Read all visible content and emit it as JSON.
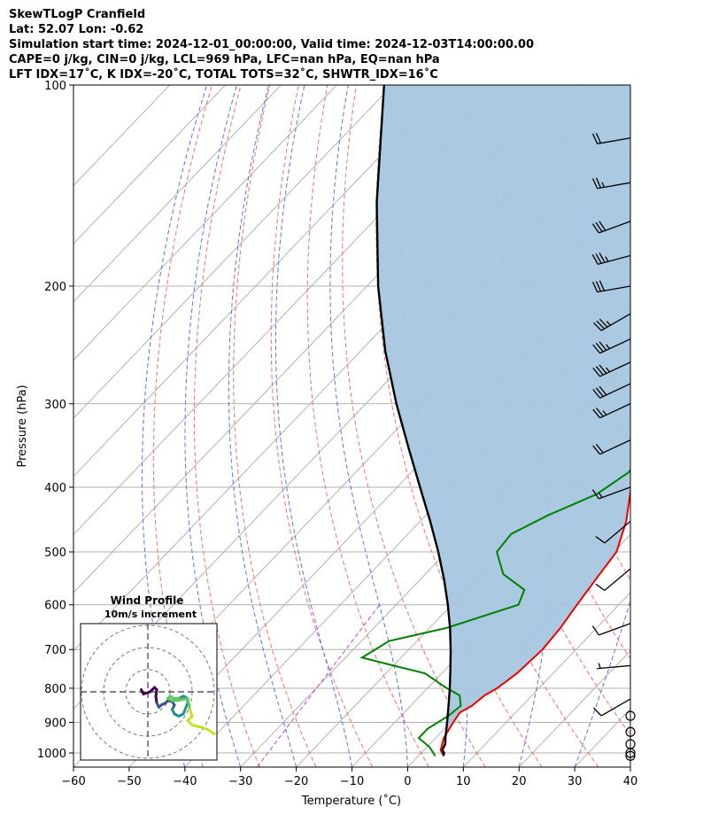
{
  "header": {
    "line1": "SkewTLogP Cranfield",
    "line2": "Lat: 52.07   Lon: -0.62",
    "line3": "Simulation start time: 2024-12-01_00:00:00, Valid time: 2024-12-03T14:00:00.00",
    "line4": "CAPE=0 j/kg, CIN=0 j/kg, LCL=969 hPa, LFC=nan hPa, EQ=nan hPa",
    "line5": "LFT IDX=17˚C, K IDX=-20˚C, TOTAL TOTS=32˚C, SHWTR_IDX=16˚C"
  },
  "chart_data": {
    "type": "skewt",
    "xlabel": "Temperature (˚C)",
    "ylabel": "Pressure (hPa)",
    "xlim": [
      -60,
      40
    ],
    "ylim": [
      1050,
      100
    ],
    "x_ticks": [
      -60,
      -50,
      -40,
      -30,
      -20,
      -10,
      0,
      10,
      20,
      30,
      40
    ],
    "y_ticks": [
      100,
      200,
      300,
      400,
      500,
      600,
      700,
      800,
      900,
      1000
    ],
    "temperature": [
      [
        1010,
        4.5
      ],
      [
        990,
        3.0
      ],
      [
        950,
        1.5
      ],
      [
        900,
        0.5
      ],
      [
        870,
        0.0
      ],
      [
        850,
        1.0
      ],
      [
        820,
        1.5
      ],
      [
        800,
        2.5
      ],
      [
        760,
        3.5
      ],
      [
        700,
        4.0
      ],
      [
        650,
        3.5
      ],
      [
        600,
        2.5
      ],
      [
        550,
        1.5
      ],
      [
        500,
        0.5
      ],
      [
        450,
        -3.0
      ],
      [
        400,
        -8.0
      ],
      [
        350,
        -11.0
      ],
      [
        300,
        -15.0
      ],
      [
        280,
        -16.0
      ],
      [
        265,
        -14.5
      ],
      [
        250,
        -11.5
      ],
      [
        235,
        -9.0
      ],
      [
        220,
        -9.5
      ],
      [
        210,
        -10.0
      ],
      [
        200,
        -10.0
      ],
      [
        190,
        -8.5
      ],
      [
        175,
        -5.0
      ],
      [
        160,
        -1.5
      ],
      [
        150,
        0.0
      ],
      [
        140,
        0.5
      ],
      [
        130,
        2.0
      ],
      [
        120,
        3.5
      ],
      [
        110,
        5.0
      ],
      [
        100,
        7.5
      ]
    ],
    "dewpoint": [
      [
        1010,
        3.0
      ],
      [
        980,
        0.5
      ],
      [
        950,
        -3.0
      ],
      [
        920,
        -3.0
      ],
      [
        880,
        -1.5
      ],
      [
        850,
        -1.0
      ],
      [
        820,
        -3.0
      ],
      [
        800,
        -6.5
      ],
      [
        760,
        -13.0
      ],
      [
        740,
        -20.0
      ],
      [
        720,
        -27.0
      ],
      [
        680,
        -25.0
      ],
      [
        650,
        -17.0
      ],
      [
        600,
        -8.0
      ],
      [
        570,
        -9.5
      ],
      [
        540,
        -16.0
      ],
      [
        500,
        -21.0
      ],
      [
        470,
        -21.5
      ],
      [
        440,
        -18.0
      ],
      [
        410,
        -13.0
      ],
      [
        380,
        -11.0
      ],
      [
        350,
        -12.0
      ],
      [
        300,
        -16.0
      ],
      [
        280,
        -18.5
      ],
      [
        265,
        -20.0
      ],
      [
        250,
        -20.5
      ],
      [
        235,
        -19.5
      ],
      [
        220,
        -18.0
      ],
      [
        200,
        -16.5
      ],
      [
        180,
        -15.5
      ],
      [
        160,
        -14.5
      ],
      [
        140,
        -13.0
      ],
      [
        130,
        -11.0
      ],
      [
        120,
        -8.0
      ],
      [
        110,
        -5.0
      ],
      [
        100,
        -2.0
      ]
    ],
    "parcel": [
      [
        1010,
        4.5
      ],
      [
        1000,
        4.1
      ],
      [
        990,
        3.3
      ],
      [
        970,
        2.8
      ],
      [
        950,
        1.8
      ],
      [
        900,
        -0.6
      ],
      [
        850,
        -3.2
      ],
      [
        800,
        -6.0
      ],
      [
        750,
        -9.1
      ],
      [
        700,
        -12.5
      ],
      [
        650,
        -16.3
      ],
      [
        600,
        -20.7
      ],
      [
        550,
        -25.7
      ],
      [
        500,
        -31.5
      ],
      [
        450,
        -38.2
      ],
      [
        400,
        -45.9
      ],
      [
        350,
        -54.6
      ],
      [
        300,
        -64.5
      ],
      [
        250,
        -75.6
      ],
      [
        200,
        -88.0
      ],
      [
        150,
        -102.6
      ],
      [
        100,
        -121.5
      ]
    ],
    "wind_barbs": [
      {
        "p": 120,
        "speed_kt": 20,
        "dir": 260
      },
      {
        "p": 140,
        "speed_kt": 25,
        "dir": 260
      },
      {
        "p": 160,
        "speed_kt": 30,
        "dir": 250
      },
      {
        "p": 180,
        "speed_kt": 35,
        "dir": 255
      },
      {
        "p": 200,
        "speed_kt": 30,
        "dir": 260
      },
      {
        "p": 220,
        "speed_kt": 35,
        "dir": 240
      },
      {
        "p": 240,
        "speed_kt": 35,
        "dir": 245
      },
      {
        "p": 260,
        "speed_kt": 35,
        "dir": 245
      },
      {
        "p": 280,
        "speed_kt": 30,
        "dir": 245
      },
      {
        "p": 300,
        "speed_kt": 25,
        "dir": 245
      },
      {
        "p": 340,
        "speed_kt": 20,
        "dir": 245
      },
      {
        "p": 400,
        "speed_kt": 15,
        "dir": 250
      },
      {
        "p": 450,
        "speed_kt": 10,
        "dir": 230
      },
      {
        "p": 530,
        "speed_kt": 10,
        "dir": 230
      },
      {
        "p": 640,
        "speed_kt": 10,
        "dir": 250
      },
      {
        "p": 740,
        "speed_kt": 5,
        "dir": 265
      },
      {
        "p": 830,
        "speed_kt": 10,
        "dir": 240
      },
      {
        "p": 880,
        "speed_kt": 0,
        "dir": 0
      },
      {
        "p": 930,
        "speed_kt": 0,
        "dir": 0
      },
      {
        "p": 970,
        "speed_kt": 0,
        "dir": 0
      },
      {
        "p": 1000,
        "speed_kt": 0,
        "dir": 0
      },
      {
        "p": 1010,
        "speed_kt": 0,
        "dir": 0
      }
    ],
    "hodograph": {
      "title": "Wind Profile",
      "subtitle": "10m/s increment",
      "rings_mps": [
        10,
        20,
        30
      ],
      "uv": [
        [
          -1.5,
          0.5
        ],
        [
          -1.0,
          -0.5
        ],
        [
          0.5,
          0.0
        ],
        [
          1.0,
          0.5
        ],
        [
          1.5,
          1.0
        ],
        [
          2.0,
          0.5
        ],
        [
          1.8,
          -1.0
        ],
        [
          2.0,
          -2.5
        ],
        [
          2.5,
          -3.5
        ],
        [
          3.0,
          -3.0
        ],
        [
          4.0,
          -2.5
        ],
        [
          4.5,
          -2.0
        ],
        [
          5.5,
          -2.2
        ],
        [
          6.0,
          -3.0
        ],
        [
          5.5,
          -4.0
        ],
        [
          6.0,
          -5.0
        ],
        [
          7.0,
          -5.5
        ],
        [
          8.0,
          -5.0
        ],
        [
          9.0,
          -2.5
        ],
        [
          9.0,
          -1.5
        ],
        [
          8.0,
          -1.0
        ],
        [
          7.0,
          -1.5
        ],
        [
          6.0,
          -1.5
        ],
        [
          5.0,
          -1.0
        ],
        [
          4.5,
          -1.5
        ],
        [
          5.5,
          -2.0
        ],
        [
          6.5,
          -2.0
        ],
        [
          9.0,
          -1.5
        ],
        [
          9.5,
          -4.0
        ],
        [
          10.0,
          -5.5
        ],
        [
          9.0,
          -6.5
        ],
        [
          10.0,
          -7.5
        ],
        [
          12.0,
          -8.0
        ],
        [
          13.5,
          -8.5
        ],
        [
          15.0,
          -9.5
        ]
      ],
      "colors": [
        "#440154",
        "#3b528b",
        "#21918c",
        "#5ec962",
        "#c8e020"
      ]
    },
    "colors": {
      "temperature": "#ee0000",
      "dewpoint": "#008000",
      "parcel": "#000000",
      "cape_fill": "#a7c7e0",
      "isotherm": "#aaaaaa",
      "dry_adiabat": "#f07070",
      "moist_adiabat": "#6070f0",
      "mixing_ratio": "#b050c0"
    }
  }
}
